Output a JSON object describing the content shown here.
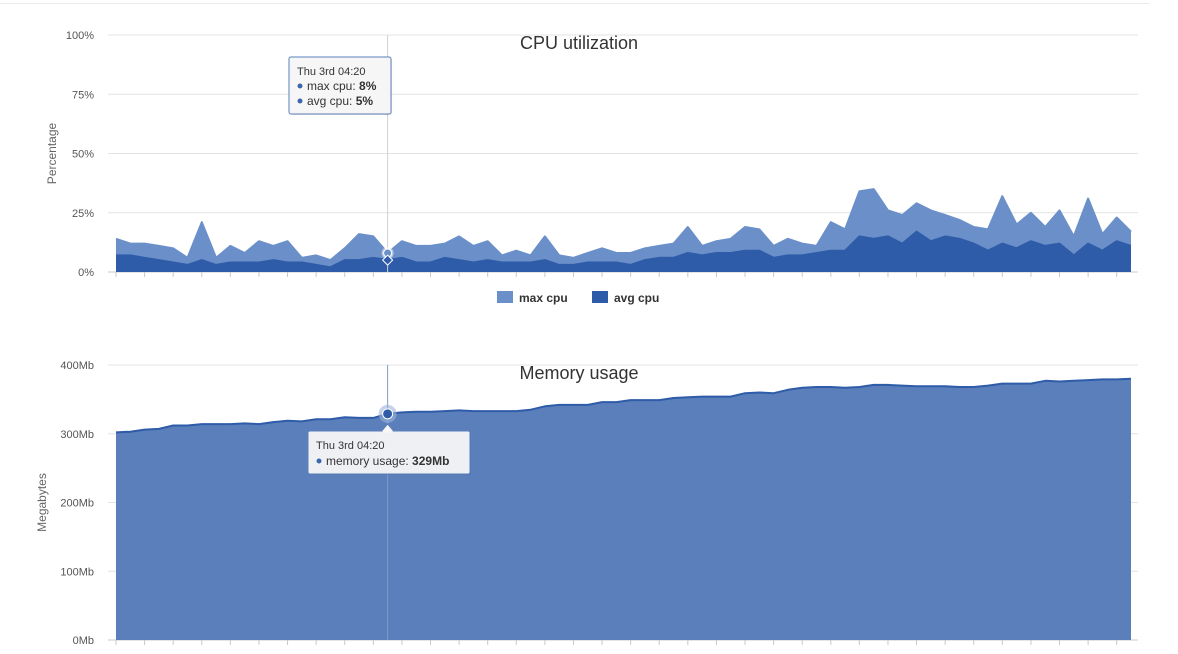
{
  "chart_data": [
    {
      "type": "area",
      "title": "CPU utilization",
      "ylabel": "Percentage",
      "ylim": [
        0,
        100
      ],
      "ytick_labels": [
        "0%",
        "25%",
        "50%",
        "75%",
        "100%"
      ],
      "grid": true,
      "legend": "bottom-center",
      "x_count": 72,
      "series": [
        {
          "name": "max cpu",
          "color": "#6b8fc9",
          "values": [
            14,
            12,
            12,
            11,
            10,
            6,
            21,
            6,
            11,
            8,
            13,
            11,
            13,
            6,
            7,
            5,
            10,
            16,
            15,
            8,
            13,
            11,
            11,
            12,
            15,
            11,
            13,
            7,
            9,
            7,
            15,
            7,
            6,
            8,
            10,
            8,
            8,
            10,
            11,
            12,
            19,
            11,
            13,
            14,
            19,
            18,
            11,
            14,
            12,
            11,
            21,
            18,
            34,
            35,
            26,
            24,
            29,
            26,
            24,
            22,
            19,
            18,
            32,
            20,
            25,
            19,
            26,
            15,
            31,
            16,
            23,
            17
          ]
        },
        {
          "name": "avg cpu",
          "color": "#2f5ca8",
          "values": [
            7,
            7,
            6,
            5,
            4,
            3,
            5,
            3,
            4,
            4,
            4,
            5,
            4,
            4,
            3,
            2,
            5,
            5,
            6,
            5,
            6,
            4,
            4,
            6,
            5,
            4,
            5,
            4,
            4,
            4,
            5,
            3,
            3,
            4,
            4,
            4,
            3,
            5,
            6,
            6,
            8,
            7,
            8,
            8,
            9,
            9,
            6,
            7,
            7,
            8,
            9,
            9,
            15,
            14,
            15,
            12,
            17,
            13,
            15,
            14,
            12,
            9,
            12,
            10,
            13,
            11,
            12,
            7,
            12,
            9,
            13,
            11
          ]
        }
      ],
      "tooltip": {
        "x_index": 19,
        "header": "Thu 3rd 04:20",
        "rows": [
          {
            "label": "max cpu: ",
            "value": "8%"
          },
          {
            "label": "avg cpu: ",
            "value": "5%"
          }
        ]
      }
    },
    {
      "type": "area",
      "title": "Memory usage",
      "ylabel": "Megabytes",
      "ylim": [
        0,
        400
      ],
      "ytick_labels": [
        "0Mb",
        "100Mb",
        "200Mb",
        "300Mb",
        "400Mb"
      ],
      "grid": true,
      "x_count": 72,
      "series": [
        {
          "name": "memory usage",
          "color": "#5a7fba",
          "line_color": "#2f5ca8",
          "values": [
            302,
            303,
            306,
            307,
            312,
            312,
            314,
            314,
            314,
            315,
            314,
            317,
            319,
            318,
            321,
            321,
            324,
            323,
            323,
            329,
            331,
            332,
            332,
            333,
            334,
            333,
            333,
            333,
            333,
            335,
            340,
            342,
            342,
            342,
            346,
            346,
            349,
            349,
            349,
            352,
            353,
            354,
            354,
            354,
            359,
            360,
            359,
            364,
            367,
            368,
            368,
            367,
            368,
            371,
            371,
            370,
            369,
            369,
            369,
            368,
            368,
            370,
            373,
            373,
            373,
            377,
            376,
            377,
            378,
            379,
            379,
            380
          ]
        }
      ],
      "tooltip": {
        "x_index": 19,
        "header": "Thu 3rd 04:20",
        "rows": [
          {
            "label": "memory usage: ",
            "value": "329Mb"
          }
        ]
      }
    }
  ]
}
